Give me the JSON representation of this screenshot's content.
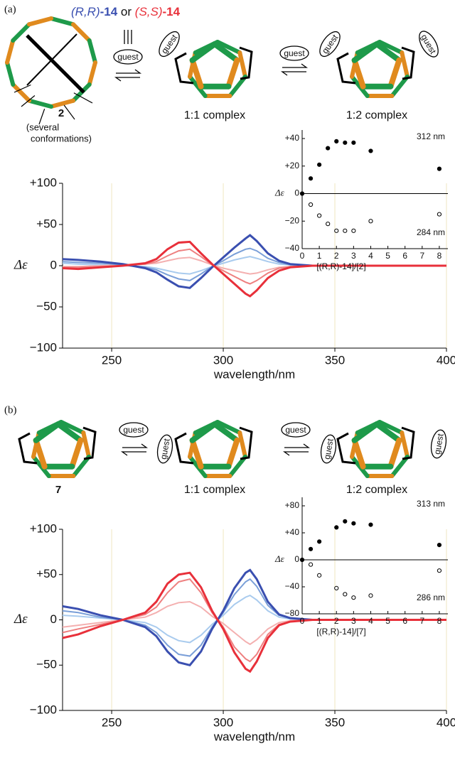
{
  "figure": {
    "panel_a": {
      "label": "(a)",
      "host_parts": [
        "(R,R)",
        "-14",
        "or",
        "(S,S)",
        "-14"
      ],
      "guest_labels": [
        "guest",
        "guest",
        "guest",
        "guest",
        "guest"
      ],
      "compound": "2",
      "compound_note": [
        "(several",
        "conformations)"
      ],
      "complexes": [
        "1:1 complex",
        "1:2 complex"
      ]
    },
    "panel_b": {
      "label": "(b)",
      "guest_labels": [
        "guest",
        "guest",
        "guest",
        "guest",
        "guest"
      ],
      "compound": "7",
      "complexes": [
        "1:1 complex",
        "1:2 complex"
      ]
    }
  },
  "chart_data": [
    {
      "type": "line",
      "xlabel": "wavelength/nm",
      "ylabel": "Δε",
      "grid": true,
      "xlim": [
        228,
        400
      ],
      "xticks": [
        250,
        300,
        350,
        400
      ],
      "ylim": [
        -100,
        100
      ],
      "yticks": [
        {
          "value": -100,
          "label": "−100"
        },
        {
          "value": -50,
          "label": "−50"
        },
        0,
        {
          "value": 50,
          "label": "+50"
        },
        {
          "value": 100,
          "label": "+100"
        }
      ],
      "x": [
        228,
        235,
        245,
        255,
        265,
        270,
        275,
        280,
        285,
        290,
        295,
        300,
        305,
        310,
        312,
        315,
        320,
        325,
        330,
        340,
        350,
        375,
        400
      ],
      "series": [
        {
          "color": "#a9cbee",
          "values": [
            3,
            2,
            1,
            0,
            -1,
            -3,
            -6,
            -9,
            -10,
            -6,
            -1,
            3,
            7,
            10,
            11,
            9,
            5,
            2,
            1,
            0,
            0,
            0,
            0
          ]
        },
        {
          "color": "#f4b0b0",
          "values": [
            -1,
            -1,
            0,
            1,
            2,
            3,
            6,
            9,
            10,
            6,
            1,
            -3,
            -6,
            -9,
            -10,
            -9,
            -5,
            -2,
            -1,
            0,
            0,
            0,
            0
          ]
        },
        {
          "color": "#7a9fd8",
          "values": [
            5,
            4,
            3,
            1,
            -2,
            -5,
            -11,
            -16,
            -18,
            -10,
            -1,
            6,
            14,
            20,
            21,
            18,
            9,
            4,
            1,
            0,
            0,
            0,
            0
          ]
        },
        {
          "color": "#ee8080",
          "values": [
            -2,
            -2,
            -1,
            0,
            2,
            5,
            12,
            18,
            20,
            11,
            1,
            -6,
            -13,
            -20,
            -22,
            -18,
            -9,
            -3,
            -1,
            0,
            0,
            0,
            0
          ]
        },
        {
          "color": "#3a4fb0",
          "values": [
            8,
            7,
            5,
            2,
            -3,
            -8,
            -17,
            -25,
            -27,
            -15,
            -2,
            10,
            22,
            33,
            37,
            30,
            15,
            6,
            2,
            0,
            0,
            0,
            0
          ]
        },
        {
          "color": "#e8303a",
          "values": [
            -3,
            -4,
            -2,
            0,
            3,
            8,
            20,
            28,
            29,
            15,
            2,
            -10,
            -22,
            -34,
            -37,
            -30,
            -15,
            -6,
            -2,
            0,
            0,
            0,
            0
          ]
        }
      ]
    },
    {
      "type": "line",
      "xlabel": "wavelength/nm",
      "ylabel": "Δε",
      "grid": true,
      "xlim": [
        228,
        400
      ],
      "xticks": [
        250,
        300,
        350,
        400
      ],
      "ylim": [
        -100,
        100
      ],
      "yticks": [
        {
          "value": -100,
          "label": "−100"
        },
        {
          "value": -50,
          "label": "−50"
        },
        0,
        {
          "value": 50,
          "label": "+50"
        },
        {
          "value": 100,
          "label": "+100"
        }
      ],
      "x": [
        228,
        235,
        245,
        255,
        265,
        270,
        275,
        280,
        285,
        290,
        295,
        300,
        305,
        310,
        312,
        315,
        320,
        325,
        330,
        340,
        350,
        375,
        400
      ],
      "series": [
        {
          "color": "#a9cbee",
          "values": [
            5,
            4,
            2,
            0,
            -3,
            -8,
            -17,
            -23,
            -25,
            -17,
            -5,
            5,
            17,
            25,
            27,
            22,
            10,
            3,
            1,
            0,
            0,
            0,
            0
          ]
        },
        {
          "color": "#f4b0b0",
          "values": [
            -8,
            -6,
            -3,
            0,
            3,
            8,
            15,
            19,
            20,
            14,
            4,
            -4,
            -14,
            -24,
            -27,
            -22,
            -10,
            -3,
            -1,
            0,
            0,
            0,
            0
          ]
        },
        {
          "color": "#7a9fd8",
          "values": [
            10,
            8,
            3,
            0,
            -6,
            -14,
            -28,
            -38,
            -40,
            -28,
            -8,
            8,
            28,
            42,
            45,
            37,
            16,
            5,
            2,
            0,
            0,
            0,
            0
          ]
        },
        {
          "color": "#ee8080",
          "values": [
            -14,
            -10,
            -5,
            0,
            6,
            14,
            30,
            42,
            45,
            30,
            8,
            -8,
            -30,
            -43,
            -46,
            -38,
            -16,
            -5,
            -2,
            0,
            0,
            0,
            0
          ]
        },
        {
          "color": "#3a4fb0",
          "values": [
            15,
            12,
            5,
            0,
            -8,
            -18,
            -35,
            -47,
            -50,
            -35,
            -10,
            10,
            35,
            52,
            55,
            45,
            20,
            6,
            2,
            0,
            0,
            0,
            0
          ]
        },
        {
          "color": "#e8303a",
          "values": [
            -20,
            -16,
            -7,
            0,
            8,
            20,
            40,
            50,
            52,
            36,
            10,
            -10,
            -36,
            -54,
            -57,
            -46,
            -20,
            -6,
            -2,
            0,
            0,
            0,
            0
          ]
        }
      ]
    },
    {
      "type": "scatter",
      "xlabel": "[(R,R)-14]/[2]",
      "ylabel": "Δε",
      "xlim": [
        0,
        8.5
      ],
      "xticks": [
        0,
        1,
        2,
        3,
        4,
        5,
        6,
        7,
        8
      ],
      "ylim": [
        -40,
        40
      ],
      "yticks": [
        {
          "value": -40,
          "label": "−40"
        },
        {
          "value": -20,
          "label": "−20"
        },
        0,
        {
          "value": 20,
          "label": "+20"
        },
        {
          "value": 40,
          "label": "+40"
        }
      ],
      "series": [
        {
          "name": "312 nm",
          "color": "#000000",
          "marker": "filled",
          "x": [
            0,
            0.5,
            1,
            1.5,
            2,
            2.5,
            3,
            4,
            8
          ],
          "values": [
            0,
            11,
            21,
            33,
            38,
            37,
            37,
            31,
            18
          ]
        },
        {
          "name": "284 nm",
          "color": "#000000",
          "marker": "open",
          "x": [
            0.5,
            1,
            1.5,
            2,
            2.5,
            3,
            4,
            8
          ],
          "values": [
            -8,
            -16,
            -22,
            -27,
            -27,
            -27,
            -20,
            -15
          ]
        }
      ]
    },
    {
      "type": "scatter",
      "xlabel": "[(R,R)-14]/[7]",
      "ylabel": "Δε",
      "xlim": [
        0,
        8.5
      ],
      "xticks": [
        0,
        1,
        2,
        3,
        4,
        5,
        6,
        7,
        8
      ],
      "ylim": [
        -80,
        80
      ],
      "yticks": [
        {
          "value": -80,
          "label": "−80"
        },
        {
          "value": -40,
          "label": "−40"
        },
        0,
        {
          "value": 40,
          "label": "+40"
        },
        {
          "value": 80,
          "label": "+80"
        }
      ],
      "series": [
        {
          "name": "313 nm",
          "color": "#000000",
          "marker": "filled",
          "x": [
            0,
            0.5,
            1,
            2,
            2.5,
            3,
            4,
            8
          ],
          "values": [
            0,
            16,
            27,
            48,
            57,
            54,
            52,
            22
          ]
        },
        {
          "name": "286 nm",
          "color": "#000000",
          "marker": "open",
          "x": [
            0.5,
            1,
            2,
            2.5,
            3,
            4,
            8
          ],
          "values": [
            -7,
            -23,
            -42,
            -51,
            -56,
            -53,
            -16
          ]
        }
      ]
    }
  ]
}
